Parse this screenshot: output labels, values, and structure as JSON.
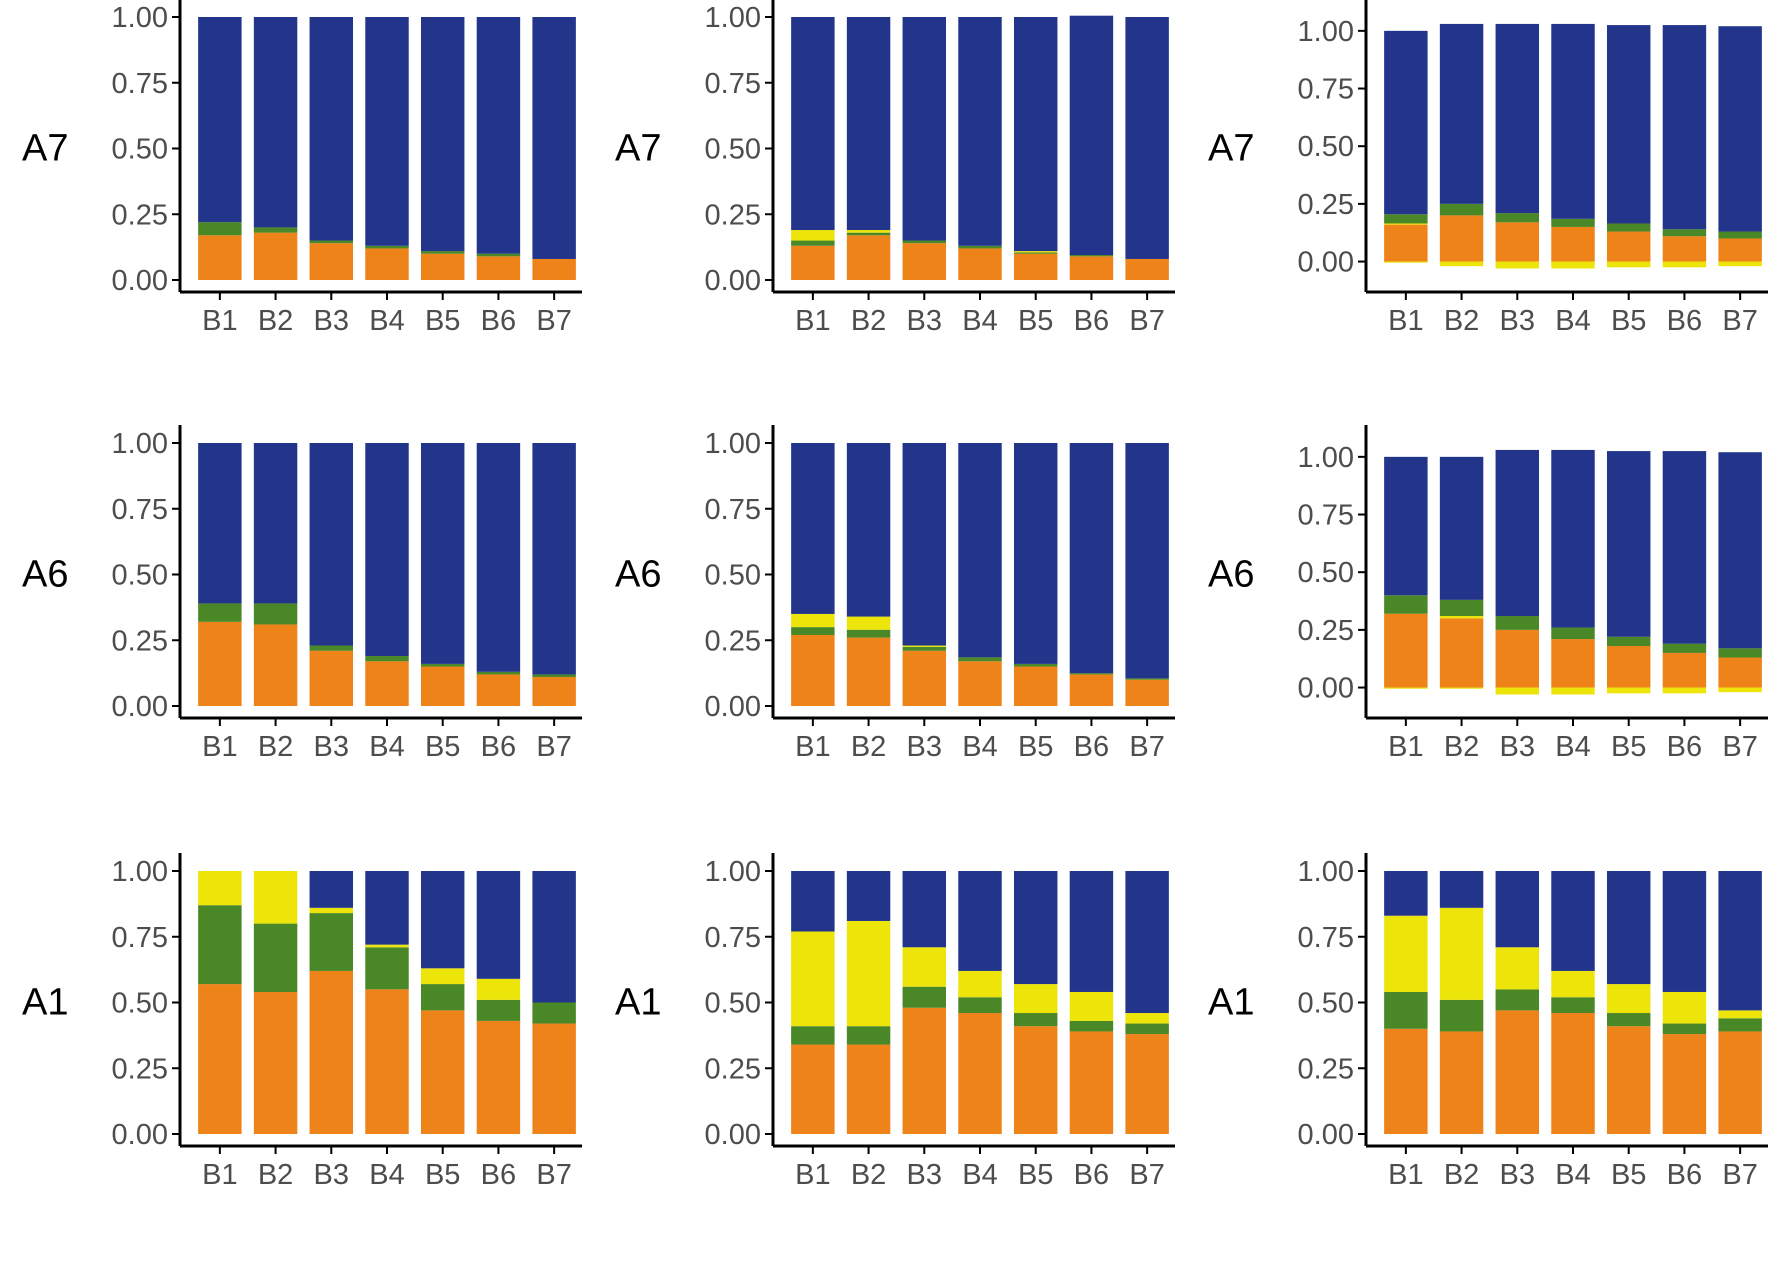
{
  "colors": {
    "navy": "#22358A",
    "green": "#4A8726",
    "yellow": "#EDE40A",
    "orange": "#EE8319",
    "axis": "#000000",
    "tick_text": "#4d4d4d"
  },
  "chart_data": [
    {
      "type": "bar",
      "stacked": true,
      "row_label": "A7",
      "categories": [
        "B1",
        "B2",
        "B3",
        "B4",
        "B5",
        "B6",
        "B7"
      ],
      "y_ticks": [
        "0.00",
        "0.25",
        "0.50",
        "0.75",
        "1.00"
      ],
      "ylim": [
        0,
        1
      ],
      "series": [
        {
          "name": "orange",
          "color": "#EE8319",
          "values": [
            0.17,
            0.18,
            0.14,
            0.12,
            0.1,
            0.09,
            0.08
          ]
        },
        {
          "name": "yellow",
          "color": "#EDE40A",
          "values": [
            0.0,
            0.0,
            0.0,
            0.0,
            0.0,
            0.0,
            0.0
          ]
        },
        {
          "name": "green",
          "color": "#4A8726",
          "values": [
            0.05,
            0.02,
            0.01,
            0.01,
            0.01,
            0.01,
            0.0
          ]
        },
        {
          "name": "navy",
          "color": "#22358A",
          "values": [
            0.78,
            0.8,
            0.85,
            0.87,
            0.89,
            0.9,
            0.92
          ]
        }
      ]
    },
    {
      "type": "bar",
      "stacked": true,
      "row_label": "A7",
      "categories": [
        "B1",
        "B2",
        "B3",
        "B4",
        "B5",
        "B6",
        "B7"
      ],
      "y_ticks": [
        "0.00",
        "0.25",
        "0.50",
        "0.75",
        "1.00"
      ],
      "ylim": [
        0,
        1
      ],
      "series": [
        {
          "name": "orange",
          "color": "#EE8319",
          "values": [
            0.13,
            0.17,
            0.14,
            0.12,
            0.1,
            0.09,
            0.08
          ]
        },
        {
          "name": "green",
          "color": "#4A8726",
          "values": [
            0.02,
            0.01,
            0.01,
            0.01,
            0.005,
            0.005,
            0.0
          ]
        },
        {
          "name": "yellow",
          "color": "#EDE40A",
          "values": [
            0.04,
            0.01,
            0.0,
            0.0,
            0.005,
            0.0,
            0.0
          ]
        },
        {
          "name": "navy",
          "color": "#22358A",
          "values": [
            0.81,
            0.81,
            0.85,
            0.87,
            0.89,
            0.91,
            0.92
          ]
        }
      ]
    },
    {
      "type": "bar",
      "stacked": true,
      "row_label": "A7",
      "categories": [
        "B1",
        "B2",
        "B3",
        "B4",
        "B5",
        "B6",
        "B7"
      ],
      "y_ticks": [
        "0.00",
        "0.25",
        "0.50",
        "0.75",
        "1.00"
      ],
      "ylim": [
        -0.08,
        1.06
      ],
      "negative_series": {
        "name": "yellow",
        "color": "#EDE40A",
        "values": [
          -0.005,
          -0.02,
          -0.03,
          -0.03,
          -0.025,
          -0.025,
          -0.02
        ]
      },
      "series": [
        {
          "name": "orange",
          "color": "#EE8319",
          "values": [
            0.16,
            0.2,
            0.17,
            0.15,
            0.13,
            0.11,
            0.1
          ]
        },
        {
          "name": "yellow",
          "color": "#EDE40A",
          "values": [
            0.005,
            0.0,
            0.0,
            0.0,
            0.0,
            0.0,
            0.0
          ]
        },
        {
          "name": "green",
          "color": "#4A8726",
          "values": [
            0.04,
            0.05,
            0.04,
            0.035,
            0.035,
            0.03,
            0.03
          ]
        },
        {
          "name": "navy",
          "color": "#22358A",
          "values": [
            0.795,
            0.78,
            0.82,
            0.845,
            0.86,
            0.885,
            0.89
          ]
        }
      ]
    },
    {
      "type": "bar",
      "stacked": true,
      "row_label": "A6",
      "categories": [
        "B1",
        "B2",
        "B3",
        "B4",
        "B5",
        "B6",
        "B7"
      ],
      "y_ticks": [
        "0.00",
        "0.25",
        "0.50",
        "0.75",
        "1.00"
      ],
      "ylim": [
        0,
        1
      ],
      "series": [
        {
          "name": "orange",
          "color": "#EE8319",
          "values": [
            0.32,
            0.31,
            0.21,
            0.17,
            0.15,
            0.12,
            0.11
          ]
        },
        {
          "name": "yellow",
          "color": "#EDE40A",
          "values": [
            0.0,
            0.0,
            0.0,
            0.0,
            0.0,
            0.0,
            0.0
          ]
        },
        {
          "name": "green",
          "color": "#4A8726",
          "values": [
            0.07,
            0.08,
            0.02,
            0.02,
            0.01,
            0.01,
            0.01
          ]
        },
        {
          "name": "navy",
          "color": "#22358A",
          "values": [
            0.61,
            0.61,
            0.77,
            0.81,
            0.84,
            0.87,
            0.88
          ]
        }
      ]
    },
    {
      "type": "bar",
      "stacked": true,
      "row_label": "A6",
      "categories": [
        "B1",
        "B2",
        "B3",
        "B4",
        "B5",
        "B6",
        "B7"
      ],
      "y_ticks": [
        "0.00",
        "0.25",
        "0.50",
        "0.75",
        "1.00"
      ],
      "ylim": [
        0,
        1
      ],
      "series": [
        {
          "name": "orange",
          "color": "#EE8319",
          "values": [
            0.27,
            0.26,
            0.21,
            0.17,
            0.15,
            0.12,
            0.1
          ]
        },
        {
          "name": "green",
          "color": "#4A8726",
          "values": [
            0.03,
            0.03,
            0.015,
            0.015,
            0.01,
            0.005,
            0.005
          ]
        },
        {
          "name": "yellow",
          "color": "#EDE40A",
          "values": [
            0.05,
            0.05,
            0.005,
            0.0,
            0.0,
            0.0,
            0.0
          ]
        },
        {
          "name": "navy",
          "color": "#22358A",
          "values": [
            0.65,
            0.66,
            0.77,
            0.815,
            0.84,
            0.875,
            0.895
          ]
        }
      ]
    },
    {
      "type": "bar",
      "stacked": true,
      "row_label": "A6",
      "categories": [
        "B1",
        "B2",
        "B3",
        "B4",
        "B5",
        "B6",
        "B7"
      ],
      "y_ticks": [
        "0.00",
        "0.25",
        "0.50",
        "0.75",
        "1.00"
      ],
      "ylim": [
        -0.08,
        1.06
      ],
      "negative_series": {
        "name": "yellow",
        "color": "#EDE40A",
        "values": [
          -0.005,
          -0.005,
          -0.03,
          -0.03,
          -0.025,
          -0.025,
          -0.02
        ]
      },
      "series": [
        {
          "name": "orange",
          "color": "#EE8319",
          "values": [
            0.32,
            0.3,
            0.25,
            0.21,
            0.18,
            0.15,
            0.13
          ]
        },
        {
          "name": "yellow",
          "color": "#EDE40A",
          "values": [
            0.0,
            0.01,
            0.0,
            0.0,
            0.0,
            0.0,
            0.0
          ]
        },
        {
          "name": "green",
          "color": "#4A8726",
          "values": [
            0.08,
            0.07,
            0.06,
            0.05,
            0.04,
            0.04,
            0.04
          ]
        },
        {
          "name": "navy",
          "color": "#22358A",
          "values": [
            0.6,
            0.62,
            0.72,
            0.77,
            0.805,
            0.835,
            0.85
          ]
        }
      ]
    },
    {
      "type": "bar",
      "stacked": true,
      "row_label": "A1",
      "categories": [
        "B1",
        "B2",
        "B3",
        "B4",
        "B5",
        "B6",
        "B7"
      ],
      "y_ticks": [
        "0.00",
        "0.25",
        "0.50",
        "0.75",
        "1.00"
      ],
      "ylim": [
        0,
        1
      ],
      "series": [
        {
          "name": "orange",
          "color": "#EE8319",
          "values": [
            0.57,
            0.54,
            0.62,
            0.55,
            0.47,
            0.43,
            0.42
          ]
        },
        {
          "name": "green",
          "color": "#4A8726",
          "values": [
            0.3,
            0.26,
            0.22,
            0.16,
            0.1,
            0.08,
            0.08
          ]
        },
        {
          "name": "yellow",
          "color": "#EDE40A",
          "values": [
            0.13,
            0.2,
            0.02,
            0.01,
            0.06,
            0.08,
            0.0
          ]
        },
        {
          "name": "navy",
          "color": "#22358A",
          "values": [
            0.0,
            0.0,
            0.14,
            0.28,
            0.37,
            0.41,
            0.5
          ]
        }
      ]
    },
    {
      "type": "bar",
      "stacked": true,
      "row_label": "A1",
      "categories": [
        "B1",
        "B2",
        "B3",
        "B4",
        "B5",
        "B6",
        "B7"
      ],
      "y_ticks": [
        "0.00",
        "0.25",
        "0.50",
        "0.75",
        "1.00"
      ],
      "ylim": [
        0,
        1
      ],
      "series": [
        {
          "name": "orange",
          "color": "#EE8319",
          "values": [
            0.34,
            0.34,
            0.48,
            0.46,
            0.41,
            0.39,
            0.38
          ]
        },
        {
          "name": "green",
          "color": "#4A8726",
          "values": [
            0.07,
            0.07,
            0.08,
            0.06,
            0.05,
            0.04,
            0.04
          ]
        },
        {
          "name": "yellow",
          "color": "#EDE40A",
          "values": [
            0.36,
            0.4,
            0.15,
            0.1,
            0.11,
            0.11,
            0.04
          ]
        },
        {
          "name": "navy",
          "color": "#22358A",
          "values": [
            0.23,
            0.19,
            0.29,
            0.38,
            0.43,
            0.46,
            0.54
          ]
        }
      ]
    },
    {
      "type": "bar",
      "stacked": true,
      "row_label": "A1",
      "categories": [
        "B1",
        "B2",
        "B3",
        "B4",
        "B5",
        "B6",
        "B7"
      ],
      "y_ticks": [
        "0.00",
        "0.25",
        "0.50",
        "0.75",
        "1.00"
      ],
      "ylim": [
        0,
        1
      ],
      "series": [
        {
          "name": "orange",
          "color": "#EE8319",
          "values": [
            0.4,
            0.39,
            0.47,
            0.46,
            0.41,
            0.38,
            0.39
          ]
        },
        {
          "name": "green",
          "color": "#4A8726",
          "values": [
            0.14,
            0.12,
            0.08,
            0.06,
            0.05,
            0.04,
            0.05
          ]
        },
        {
          "name": "yellow",
          "color": "#EDE40A",
          "values": [
            0.29,
            0.35,
            0.16,
            0.1,
            0.11,
            0.12,
            0.03
          ]
        },
        {
          "name": "navy",
          "color": "#22358A",
          "values": [
            0.17,
            0.14,
            0.29,
            0.38,
            0.43,
            0.46,
            0.53
          ]
        }
      ]
    }
  ]
}
